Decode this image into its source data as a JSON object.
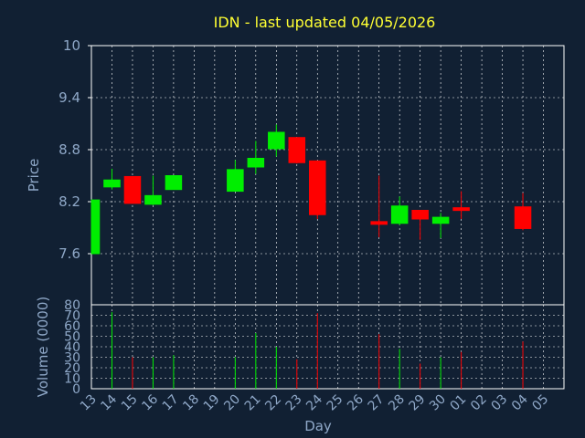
{
  "title": "IDN - last updated 04/05/2026",
  "colors": {
    "background": "#112033",
    "title": "#ffff33",
    "axis_text": "#8fa8c8",
    "up": "#00ee00",
    "down": "#ff0000",
    "grid": "#ffffff",
    "frame": "#ffffff"
  },
  "chart_data": [
    {
      "type": "candlestick",
      "ylabel": "Price",
      "ylim": [
        7.6,
        10
      ],
      "yticks": [
        "10",
        "9.4",
        "8.8",
        "8.2",
        "7.6"
      ],
      "grid": true,
      "candles": [
        {
          "day": "13",
          "open": 7.6,
          "close": 8.22,
          "high": 8.22,
          "low": 7.6
        },
        {
          "day": "14",
          "open": 8.37,
          "close": 8.45,
          "high": 8.58,
          "low": 8.34
        },
        {
          "day": "15",
          "open": 8.49,
          "close": 8.18,
          "high": 8.49,
          "low": 8.18
        },
        {
          "day": "16",
          "open": 8.17,
          "close": 8.27,
          "high": 8.5,
          "low": 8.16
        },
        {
          "day": "17",
          "open": 8.34,
          "close": 8.5,
          "high": 8.5,
          "low": 8.34
        },
        {
          "day": "20",
          "open": 8.32,
          "close": 8.57,
          "high": 8.68,
          "low": 8.32
        },
        {
          "day": "21",
          "open": 8.6,
          "close": 8.7,
          "high": 8.9,
          "low": 8.52
        },
        {
          "day": "22",
          "open": 8.81,
          "close": 9.0,
          "high": 9.09,
          "low": 8.72
        },
        {
          "day": "23",
          "open": 8.94,
          "close": 8.65,
          "high": 8.94,
          "low": 8.64
        },
        {
          "day": "24",
          "open": 8.67,
          "close": 8.05,
          "high": 8.67,
          "low": 8.0
        },
        {
          "day": "27",
          "open": 7.97,
          "close": 7.95,
          "high": 8.5,
          "low": 7.79
        },
        {
          "day": "28",
          "open": 7.95,
          "close": 8.15,
          "high": 8.26,
          "low": 7.93
        },
        {
          "day": "29",
          "open": 8.1,
          "close": 8.0,
          "high": 8.1,
          "low": 7.76
        },
        {
          "day": "30",
          "open": 7.95,
          "close": 8.02,
          "high": 8.07,
          "low": 7.78
        },
        {
          "day": "01",
          "open": 8.13,
          "close": 8.1,
          "high": 8.32,
          "low": 8.0
        },
        {
          "day": "04",
          "open": 8.14,
          "close": 7.89,
          "high": 8.3,
          "low": 7.87
        }
      ]
    },
    {
      "type": "bar",
      "ylabel": "Volume (0000)",
      "xlabel": "Day",
      "ylim": [
        0,
        80
      ],
      "yticks": [
        "80",
        "70",
        "60",
        "50",
        "40",
        "30",
        "20",
        "10",
        "0"
      ],
      "categories": [
        "13",
        "14",
        "15",
        "16",
        "17",
        "18",
        "19",
        "20",
        "21",
        "22",
        "23",
        "24",
        "25",
        "26",
        "27",
        "28",
        "29",
        "30",
        "01",
        "02",
        "03",
        "04",
        "05"
      ],
      "volumes": [
        {
          "day": "14",
          "value": 73,
          "direction": "up"
        },
        {
          "day": "15",
          "value": 30,
          "direction": "down"
        },
        {
          "day": "16",
          "value": 30,
          "direction": "up"
        },
        {
          "day": "17",
          "value": 32,
          "direction": "up"
        },
        {
          "day": "20",
          "value": 30,
          "direction": "up"
        },
        {
          "day": "21",
          "value": 53,
          "direction": "up"
        },
        {
          "day": "22",
          "value": 40,
          "direction": "up"
        },
        {
          "day": "23",
          "value": 28,
          "direction": "down"
        },
        {
          "day": "24",
          "value": 72,
          "direction": "down"
        },
        {
          "day": "27",
          "value": 52,
          "direction": "down"
        },
        {
          "day": "28",
          "value": 38,
          "direction": "up"
        },
        {
          "day": "29",
          "value": 24,
          "direction": "down"
        },
        {
          "day": "30",
          "value": 30,
          "direction": "up"
        },
        {
          "day": "01",
          "value": 35,
          "direction": "down"
        },
        {
          "day": "04",
          "value": 45,
          "direction": "down"
        }
      ]
    }
  ]
}
